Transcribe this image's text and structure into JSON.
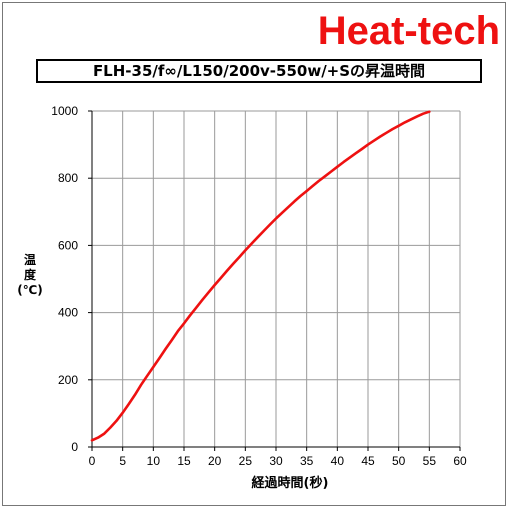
{
  "brand": "Heat-tech",
  "chart_data": {
    "type": "line",
    "title": "FLH-35/f∞/L150/200v-550w/+Sの昇温時間",
    "xlabel": "経過時間(秒)",
    "ylabel": [
      "温",
      "度",
      "(℃)"
    ],
    "xlim": [
      0,
      60
    ],
    "ylim": [
      0,
      1000
    ],
    "xticks": [
      0,
      5,
      10,
      15,
      20,
      25,
      30,
      35,
      40,
      45,
      50,
      55,
      60
    ],
    "yticks": [
      0,
      200,
      400,
      600,
      800,
      1000
    ],
    "grid": true,
    "line_color": "#ee1111",
    "series": [
      {
        "x": [
          0,
          1,
          2,
          3,
          4,
          5,
          6,
          7,
          8,
          9,
          10,
          11,
          12,
          13,
          14,
          15,
          16,
          17,
          18,
          19,
          20,
          21,
          22,
          23,
          24,
          25,
          26,
          27,
          28,
          29,
          30,
          31,
          32,
          33,
          34,
          35,
          36,
          37,
          38,
          39,
          40,
          41,
          42,
          43,
          44,
          45,
          46,
          47,
          48,
          49,
          50,
          51,
          52,
          53,
          54,
          55
        ],
        "y": [
          20,
          28,
          40,
          58,
          78,
          102,
          128,
          155,
          185,
          212,
          238,
          265,
          292,
          318,
          345,
          368,
          392,
          415,
          438,
          460,
          482,
          503,
          524,
          545,
          565,
          585,
          605,
          624,
          643,
          662,
          680,
          697,
          714,
          731,
          747,
          762,
          777,
          792,
          806,
          820,
          834,
          848,
          861,
          874,
          887,
          900,
          912,
          924,
          935,
          946,
          956,
          966,
          975,
          984,
          992,
          998
        ]
      }
    ]
  }
}
